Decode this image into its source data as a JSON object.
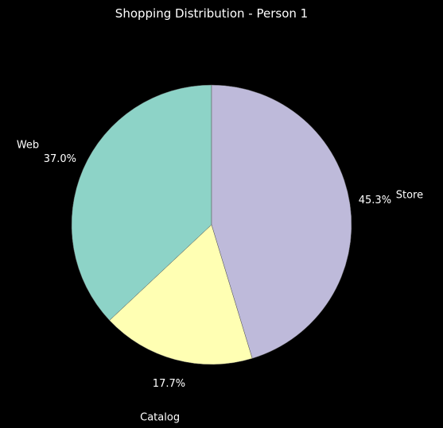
{
  "chart_data": {
    "type": "pie",
    "title": "Shopping Distribution - Person 1",
    "labels": [
      "Web",
      "Catalog",
      "Store"
    ],
    "values": [
      37.0,
      17.7,
      45.3
    ],
    "value_labels": [
      "37.0%",
      "17.7%",
      "45.3%"
    ],
    "colors": [
      "#8dd3c7",
      "#ffffb3",
      "#bebada"
    ],
    "background": "#000000",
    "text_color": "#ffffff",
    "start_angle": 90,
    "direction": "counterclockwise"
  }
}
